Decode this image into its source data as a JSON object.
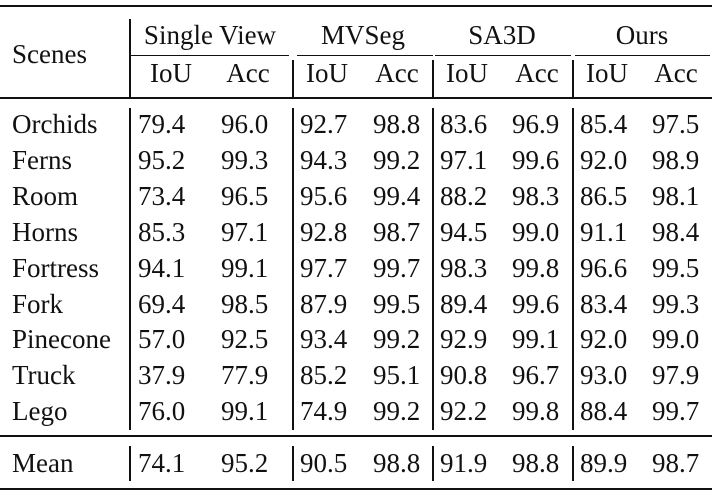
{
  "table": {
    "header": {
      "scenes_label": "Scenes",
      "groups": [
        "Single View",
        "MVSeg",
        "SA3D",
        "Ours"
      ],
      "subheaders": [
        "IoU",
        "Acc",
        "IoU",
        "Acc",
        "IoU",
        "Acc",
        "IoU",
        "Acc"
      ]
    },
    "rows": [
      {
        "scene": "Orchids",
        "values": [
          "79.4",
          "96.0",
          "92.7",
          "98.8",
          "83.6",
          "96.9",
          "85.4",
          "97.5"
        ]
      },
      {
        "scene": "Ferns",
        "values": [
          "95.2",
          "99.3",
          "94.3",
          "99.2",
          "97.1",
          "99.6",
          "92.0",
          "98.9"
        ]
      },
      {
        "scene": "Room",
        "values": [
          "73.4",
          "96.5",
          "95.6",
          "99.4",
          "88.2",
          "98.3",
          "86.5",
          "98.1"
        ]
      },
      {
        "scene": "Horns",
        "values": [
          "85.3",
          "97.1",
          "92.8",
          "98.7",
          "94.5",
          "99.0",
          "91.1",
          "98.4"
        ]
      },
      {
        "scene": "Fortress",
        "values": [
          "94.1",
          "99.1",
          "97.7",
          "99.7",
          "98.3",
          "99.8",
          "96.6",
          "99.5"
        ]
      },
      {
        "scene": "Fork",
        "values": [
          "69.4",
          "98.5",
          "87.9",
          "99.5",
          "89.4",
          "99.6",
          "83.4",
          "99.3"
        ]
      },
      {
        "scene": "Pinecone",
        "values": [
          "57.0",
          "92.5",
          "93.4",
          "99.2",
          "92.9",
          "99.1",
          "92.0",
          "99.0"
        ]
      },
      {
        "scene": "Truck",
        "values": [
          "37.9",
          "77.9",
          "85.2",
          "95.1",
          "90.8",
          "96.7",
          "93.0",
          "97.9"
        ]
      },
      {
        "scene": "Lego",
        "values": [
          "76.0",
          "99.1",
          "74.9",
          "99.2",
          "92.2",
          "99.8",
          "88.4",
          "99.7"
        ]
      }
    ],
    "mean": {
      "scene": "Mean",
      "values": [
        "74.1",
        "95.2",
        "90.5",
        "98.8",
        "91.9",
        "98.8",
        "89.9",
        "98.7"
      ]
    }
  }
}
